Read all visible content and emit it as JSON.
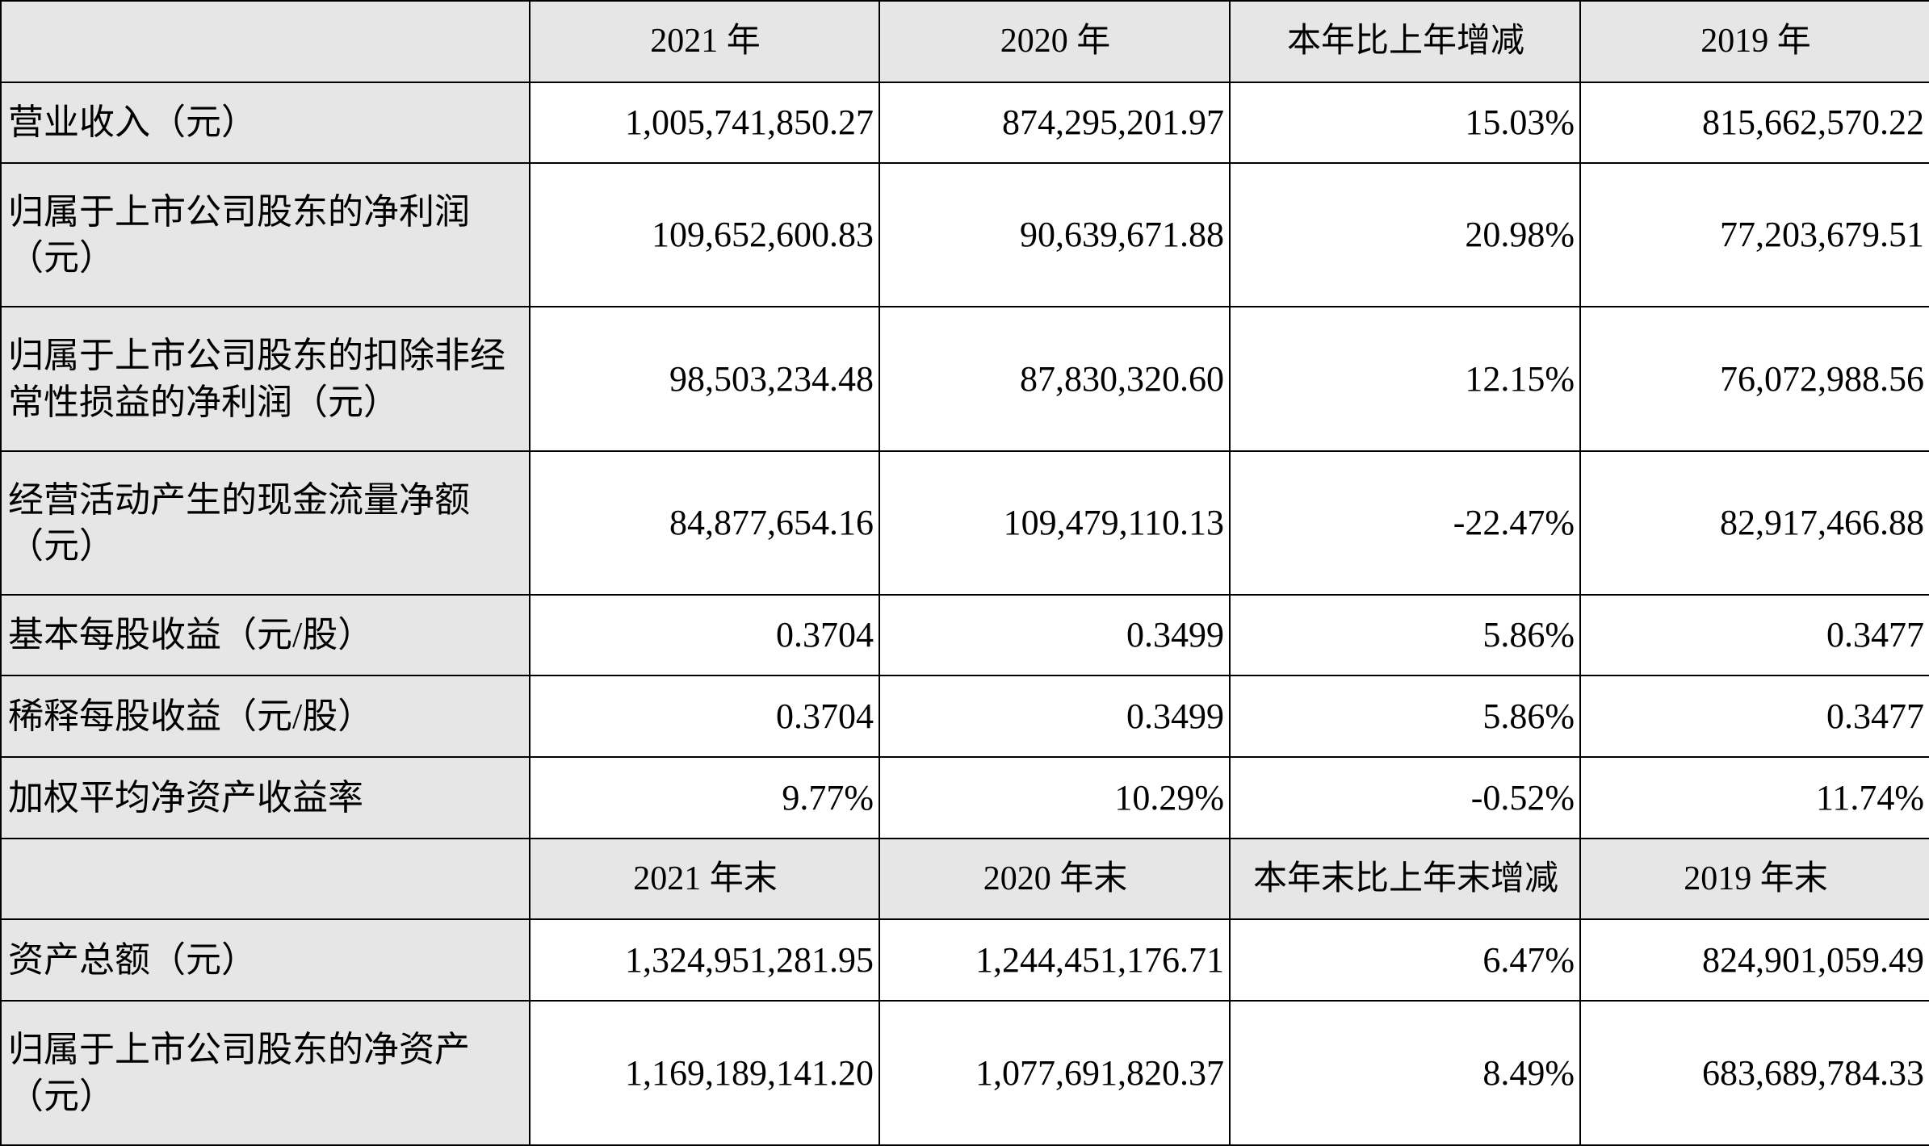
{
  "sections": [
    {
      "header": [
        "2021 年",
        "2020 年",
        "本年比上年增减",
        "2019 年"
      ],
      "rows": [
        {
          "label": "营业收入（元）",
          "values": [
            "1,005,741,850.27",
            "874,295,201.97",
            "15.03%",
            "815,662,570.22"
          ]
        },
        {
          "label": "归属于上市公司股东的净利润（元）",
          "values": [
            "109,652,600.83",
            "90,639,671.88",
            "20.98%",
            "77,203,679.51"
          ]
        },
        {
          "label": "归属于上市公司股东的扣除非经常性损益的净利润（元）",
          "values": [
            "98,503,234.48",
            "87,830,320.60",
            "12.15%",
            "76,072,988.56"
          ]
        },
        {
          "label": "经营活动产生的现金流量净额（元）",
          "values": [
            "84,877,654.16",
            "109,479,110.13",
            "-22.47%",
            "82,917,466.88"
          ]
        },
        {
          "label": "基本每股收益（元/股）",
          "values": [
            "0.3704",
            "0.3499",
            "5.86%",
            "0.3477"
          ]
        },
        {
          "label": "稀释每股收益（元/股）",
          "values": [
            "0.3704",
            "0.3499",
            "5.86%",
            "0.3477"
          ]
        },
        {
          "label": "加权平均净资产收益率",
          "values": [
            "9.77%",
            "10.29%",
            "-0.52%",
            "11.74%"
          ]
        }
      ]
    },
    {
      "header": [
        "2021 年末",
        "2020 年末",
        "本年末比上年末增减",
        "2019 年末"
      ],
      "rows": [
        {
          "label": "资产总额（元）",
          "values": [
            "1,324,951,281.95",
            "1,244,451,176.71",
            "6.47%",
            "824,901,059.49"
          ]
        },
        {
          "label": "归属于上市公司股东的净资产（元）",
          "values": [
            "1,169,189,141.20",
            "1,077,691,820.37",
            "8.49%",
            "683,689,784.33"
          ]
        }
      ]
    }
  ]
}
